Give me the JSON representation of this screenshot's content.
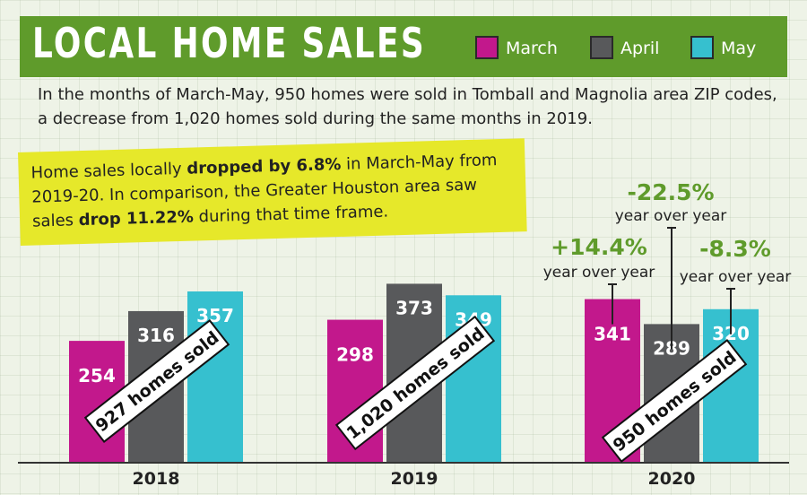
{
  "header": {
    "title": "LOCAL HOME SALES"
  },
  "intro": "In the months of March-May, 950 homes were sold in Tomball and Magnolia area ZIP codes, a decrease from 1,020 homes sold during the same months in 2019.",
  "callout": {
    "part1": "Home sales locally ",
    "bold1": "dropped by 6.8%",
    "part2": " in March-May from 2019-20. In comparison, the Greater Houston area saw sales ",
    "bold2": "drop 11.22%",
    "part3": " during that time frame."
  },
  "colors": {
    "march": "#c2188c",
    "april": "#58595b",
    "may": "#36c0cf",
    "accent_green": "#5f9b2b",
    "callout_yellow": "#e6e82a"
  },
  "chart_data": {
    "type": "bar",
    "title": "LOCAL HOME SALES",
    "categories": [
      "2018",
      "2019",
      "2020"
    ],
    "series": [
      {
        "name": "March",
        "values": [
          254,
          298,
          341
        ]
      },
      {
        "name": "April",
        "values": [
          316,
          373,
          289
        ]
      },
      {
        "name": "May",
        "values": [
          357,
          349,
          320
        ]
      }
    ],
    "totals": [
      "927 homes sold",
      "1,020 homes sold",
      "950 homes sold"
    ],
    "changes_2020": [
      {
        "series": "March",
        "value": "+14.4%",
        "label": "year over year"
      },
      {
        "series": "April",
        "value": "-22.5%",
        "label": "year over year"
      },
      {
        "series": "May",
        "value": "-8.3%",
        "label": "year over year"
      }
    ],
    "legend_position": "top-right",
    "grid": false
  }
}
